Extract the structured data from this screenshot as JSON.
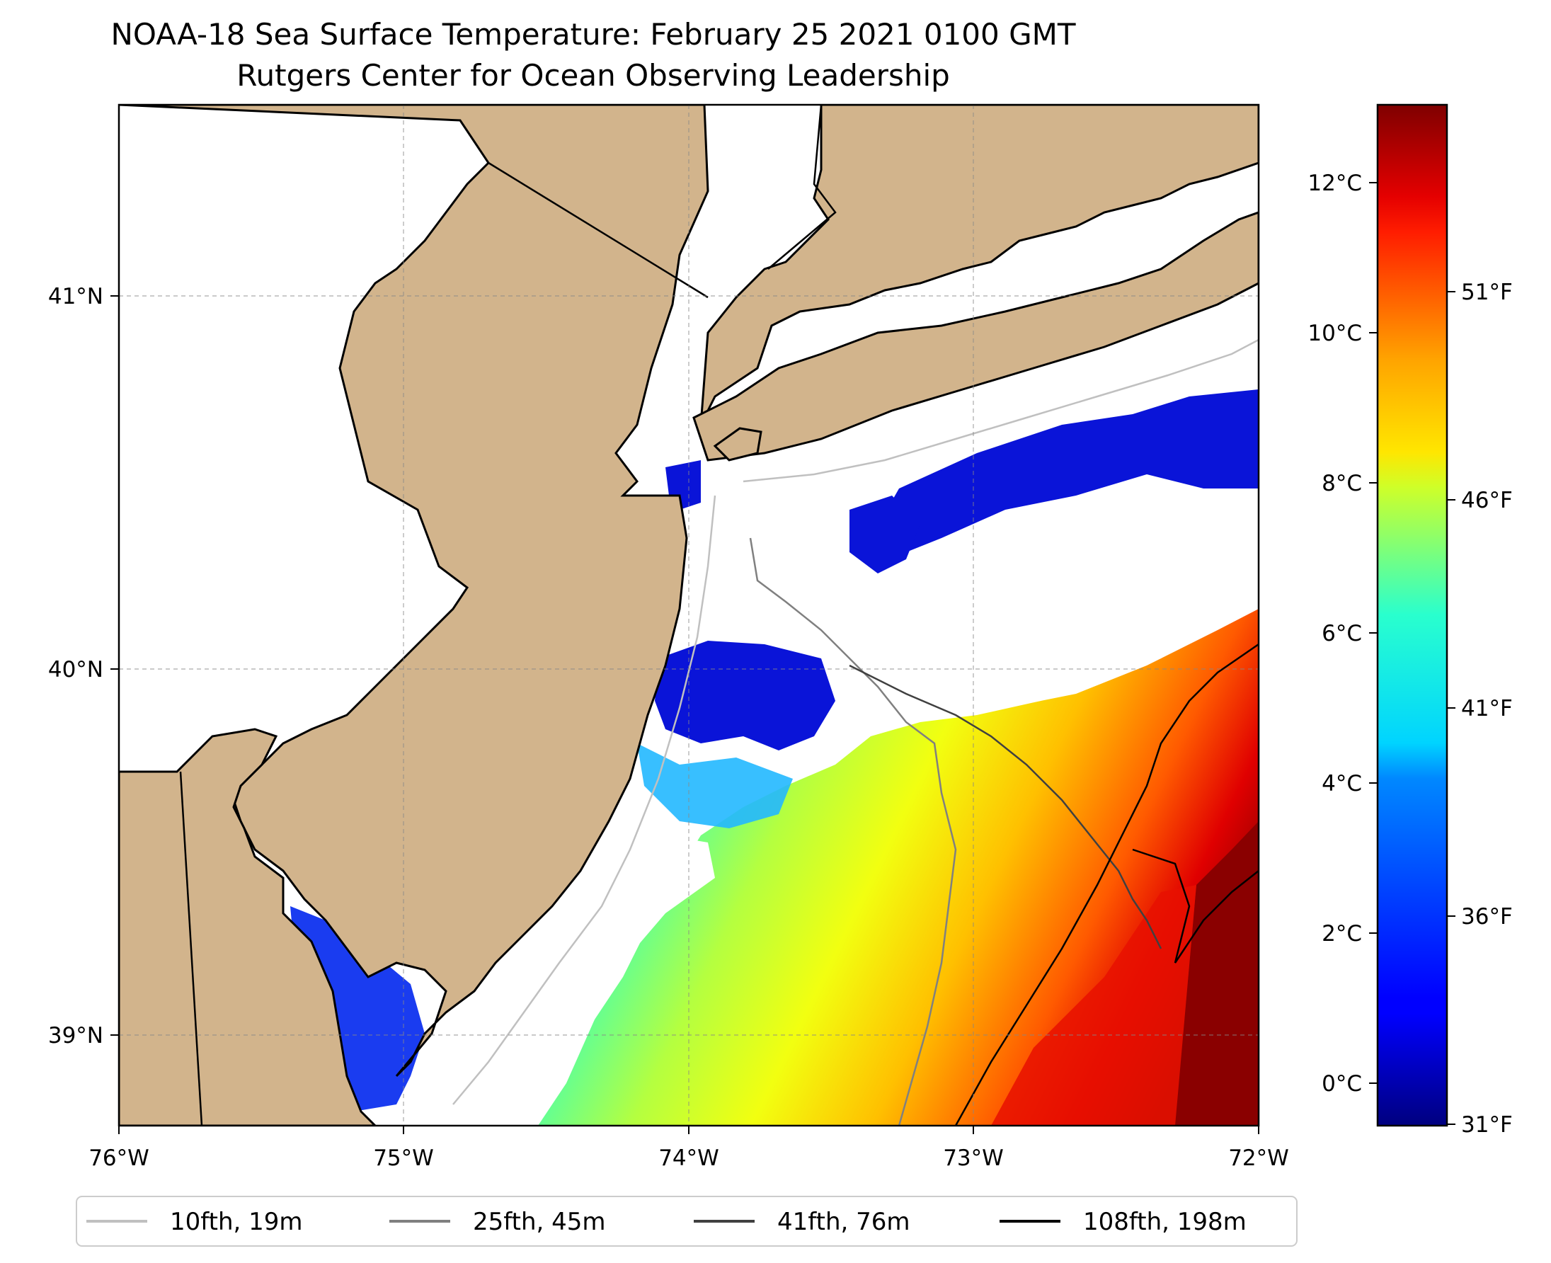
{
  "title": "NOAA-18 Sea Surface Temperature: February 25 2021 0100 GMT",
  "subtitle": "Rutgers Center for Ocean Observing Leadership",
  "map": {
    "lon_range": [
      -76,
      -72
    ],
    "lat_range": [
      38.7,
      41.5
    ],
    "lon_ticks": [
      "76°W",
      "75°W",
      "74°W",
      "73°W",
      "72°W"
    ],
    "lat_ticks": [
      "41°N",
      "40°N",
      "39°N"
    ],
    "land_color": "#d2b48c",
    "no_data_color": "#ffffff",
    "grid": true
  },
  "colorbar": {
    "colormap": "jet",
    "celsius_ticks": [
      "12°C",
      "10°C",
      "8°C",
      "6°C",
      "4°C",
      "2°C",
      "0°C"
    ],
    "fahrenheit_ticks": [
      "51°F",
      "46°F",
      "41°F",
      "36°F",
      "31°F"
    ],
    "range_c": [
      -0.5,
      13
    ]
  },
  "legend": [
    {
      "label": "10fth, 19m",
      "color": "#c0c0c0"
    },
    {
      "label": "25fth, 45m",
      "color": "#808080"
    },
    {
      "label": "41fth, 76m",
      "color": "#404040"
    },
    {
      "label": "108fth, 198m",
      "color": "#000000"
    }
  ]
}
